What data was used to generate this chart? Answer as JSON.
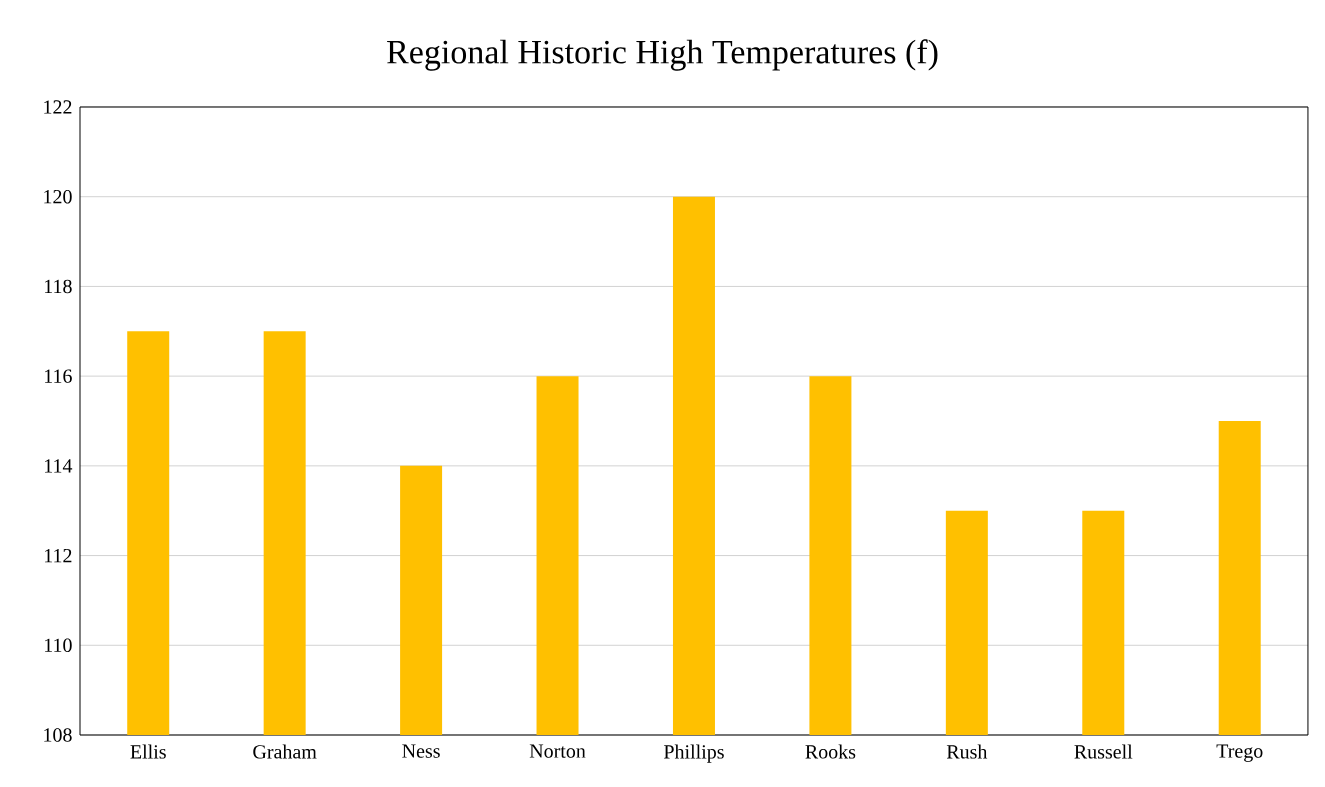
{
  "chart_data": {
    "type": "bar",
    "title": "Regional Historic High Temperatures (f)",
    "categories": [
      "Ellis",
      "Graham",
      "Ness",
      "Norton",
      "Phillips",
      "Rooks",
      "Rush",
      "Russell",
      "Trego"
    ],
    "values": [
      117,
      117,
      114,
      116,
      120,
      116,
      113,
      113,
      115
    ],
    "color": "#ffc000",
    "ylim": [
      108,
      122
    ],
    "yticks": [
      108,
      110,
      112,
      114,
      116,
      118,
      120,
      122
    ],
    "grid": "y"
  }
}
